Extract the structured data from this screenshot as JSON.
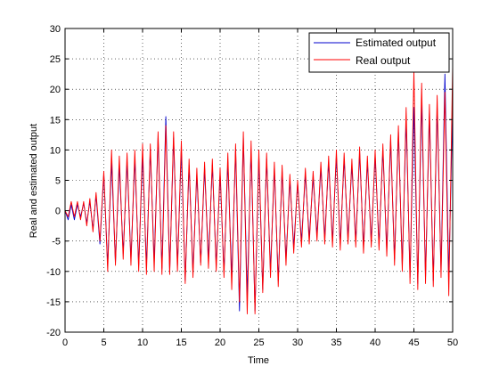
{
  "chart_data": {
    "type": "line",
    "title": "",
    "xlabel": "Time",
    "ylabel": "Real and estimated output",
    "xlim": [
      0,
      50
    ],
    "ylim": [
      -20,
      30
    ],
    "xticks": [
      0,
      5,
      10,
      15,
      20,
      25,
      30,
      35,
      40,
      45,
      50
    ],
    "yticks": [
      -20,
      -15,
      -10,
      -5,
      0,
      5,
      10,
      15,
      20,
      25,
      30
    ],
    "grid": true,
    "grid_style": "dotted",
    "legend": "top-right",
    "series": [
      {
        "name": "Estimated output",
        "color": "#0000cc",
        "peaks": [
          {
            "x": 0.0,
            "y": 0.0
          },
          {
            "x": 0.4,
            "y": -1.5
          },
          {
            "x": 0.8,
            "y": 1.0
          },
          {
            "x": 1.2,
            "y": -1.5
          },
          {
            "x": 1.6,
            "y": 1.0
          },
          {
            "x": 2.0,
            "y": -1.0
          },
          {
            "x": 2.4,
            "y": 1.2
          },
          {
            "x": 2.8,
            "y": -2.0
          },
          {
            "x": 3.2,
            "y": 1.5
          },
          {
            "x": 3.6,
            "y": -3.0
          },
          {
            "x": 4.0,
            "y": 2.5
          },
          {
            "x": 4.5,
            "y": -5.5
          },
          {
            "x": 5.0,
            "y": 6.0
          },
          {
            "x": 5.5,
            "y": -9.0
          },
          {
            "x": 6.0,
            "y": 8.0
          },
          {
            "x": 6.5,
            "y": -8.5
          },
          {
            "x": 7.0,
            "y": 7.5
          },
          {
            "x": 7.5,
            "y": -7.0
          },
          {
            "x": 8.0,
            "y": 8.0
          },
          {
            "x": 8.5,
            "y": -8.0
          },
          {
            "x": 9.0,
            "y": 8.5
          },
          {
            "x": 9.5,
            "y": -9.0
          },
          {
            "x": 10.0,
            "y": 9.0
          },
          {
            "x": 10.5,
            "y": -9.0
          },
          {
            "x": 11.0,
            "y": 10.0
          },
          {
            "x": 11.5,
            "y": -8.5
          },
          {
            "x": 12.0,
            "y": 12.0
          },
          {
            "x": 12.5,
            "y": -9.5
          },
          {
            "x": 13.0,
            "y": 15.5
          },
          {
            "x": 13.5,
            "y": -10.0
          },
          {
            "x": 14.0,
            "y": 12.0
          },
          {
            "x": 14.5,
            "y": -9.0
          },
          {
            "x": 15.0,
            "y": 10.0
          },
          {
            "x": 15.5,
            "y": -11.5
          },
          {
            "x": 16.0,
            "y": 7.5
          },
          {
            "x": 16.5,
            "y": -10.0
          },
          {
            "x": 17.0,
            "y": 6.0
          },
          {
            "x": 17.5,
            "y": -8.5
          },
          {
            "x": 18.0,
            "y": 7.0
          },
          {
            "x": 18.5,
            "y": -8.0
          },
          {
            "x": 19.0,
            "y": 7.5
          },
          {
            "x": 19.5,
            "y": -9.0
          },
          {
            "x": 20.0,
            "y": 6.0
          },
          {
            "x": 20.5,
            "y": -10.0
          },
          {
            "x": 21.0,
            "y": 8.0
          },
          {
            "x": 21.5,
            "y": -11.0
          },
          {
            "x": 22.0,
            "y": 10.0
          },
          {
            "x": 22.5,
            "y": -16.5
          },
          {
            "x": 23.0,
            "y": 12.0
          },
          {
            "x": 23.5,
            "y": -14.0
          },
          {
            "x": 24.0,
            "y": 10.0
          },
          {
            "x": 24.5,
            "y": -16.5
          },
          {
            "x": 25.0,
            "y": 9.0
          },
          {
            "x": 25.5,
            "y": -13.0
          },
          {
            "x": 26.0,
            "y": 8.5
          },
          {
            "x": 26.5,
            "y": -10.0
          },
          {
            "x": 27.0,
            "y": 7.0
          },
          {
            "x": 27.5,
            "y": -11.5
          },
          {
            "x": 28.0,
            "y": 6.5
          },
          {
            "x": 28.5,
            "y": -8.0
          },
          {
            "x": 29.0,
            "y": 5.0
          },
          {
            "x": 29.5,
            "y": -6.0
          },
          {
            "x": 30.0,
            "y": 4.5
          },
          {
            "x": 30.5,
            "y": -5.0
          },
          {
            "x": 31.0,
            "y": 6.0
          },
          {
            "x": 31.5,
            "y": -4.5
          },
          {
            "x": 32.0,
            "y": 5.5
          },
          {
            "x": 32.5,
            "y": -4.0
          },
          {
            "x": 33.0,
            "y": 7.0
          },
          {
            "x": 33.5,
            "y": -4.5
          },
          {
            "x": 34.0,
            "y": 8.0
          },
          {
            "x": 34.5,
            "y": -5.0
          },
          {
            "x": 35.0,
            "y": 9.0
          },
          {
            "x": 35.5,
            "y": -5.5
          },
          {
            "x": 36.0,
            "y": 8.5
          },
          {
            "x": 36.5,
            "y": -4.5
          },
          {
            "x": 37.0,
            "y": 7.5
          },
          {
            "x": 37.5,
            "y": -5.0
          },
          {
            "x": 38.0,
            "y": 9.5
          },
          {
            "x": 38.5,
            "y": -6.0
          },
          {
            "x": 39.0,
            "y": 8.0
          },
          {
            "x": 39.5,
            "y": -5.0
          },
          {
            "x": 40.0,
            "y": 9.0
          },
          {
            "x": 40.5,
            "y": -5.5
          },
          {
            "x": 41.0,
            "y": 10.0
          },
          {
            "x": 41.5,
            "y": -6.5
          },
          {
            "x": 42.0,
            "y": 11.5
          },
          {
            "x": 42.5,
            "y": -8.0
          },
          {
            "x": 43.0,
            "y": 13.0
          },
          {
            "x": 43.5,
            "y": -9.0
          },
          {
            "x": 44.0,
            "y": 15.0
          },
          {
            "x": 44.5,
            "y": -11.0
          },
          {
            "x": 45.0,
            "y": 17.0
          },
          {
            "x": 45.5,
            "y": -12.0
          },
          {
            "x": 46.0,
            "y": 18.0
          },
          {
            "x": 46.5,
            "y": -11.0
          },
          {
            "x": 47.0,
            "y": 16.0
          },
          {
            "x": 47.5,
            "y": -11.5
          },
          {
            "x": 48.0,
            "y": 17.0
          },
          {
            "x": 48.5,
            "y": -10.0
          },
          {
            "x": 49.0,
            "y": 22.5
          },
          {
            "x": 49.5,
            "y": -11.0
          },
          {
            "x": 50.0,
            "y": 17.5
          }
        ]
      },
      {
        "name": "Real output",
        "color": "#ff0000",
        "peaks": [
          {
            "x": 0.0,
            "y": 0.0
          },
          {
            "x": 0.4,
            "y": -1.0
          },
          {
            "x": 0.8,
            "y": 1.5
          },
          {
            "x": 1.2,
            "y": -1.0
          },
          {
            "x": 1.6,
            "y": 1.5
          },
          {
            "x": 2.0,
            "y": -1.5
          },
          {
            "x": 2.4,
            "y": 1.5
          },
          {
            "x": 2.8,
            "y": -2.5
          },
          {
            "x": 3.2,
            "y": 2.0
          },
          {
            "x": 3.6,
            "y": -3.5
          },
          {
            "x": 4.0,
            "y": 3.0
          },
          {
            "x": 4.5,
            "y": -5.0
          },
          {
            "x": 5.0,
            "y": 6.5
          },
          {
            "x": 5.5,
            "y": -10.0
          },
          {
            "x": 6.0,
            "y": 10.0
          },
          {
            "x": 6.5,
            "y": -9.0
          },
          {
            "x": 7.0,
            "y": 9.0
          },
          {
            "x": 7.5,
            "y": -8.0
          },
          {
            "x": 8.0,
            "y": 9.5
          },
          {
            "x": 8.5,
            "y": -9.0
          },
          {
            "x": 9.0,
            "y": 10.0
          },
          {
            "x": 9.5,
            "y": -10.0
          },
          {
            "x": 10.0,
            "y": 11.0
          },
          {
            "x": 10.5,
            "y": -10.5
          },
          {
            "x": 11.0,
            "y": 11.0
          },
          {
            "x": 11.5,
            "y": -10.0
          },
          {
            "x": 12.0,
            "y": 13.0
          },
          {
            "x": 12.5,
            "y": -10.5
          },
          {
            "x": 13.0,
            "y": 14.0
          },
          {
            "x": 13.5,
            "y": -10.5
          },
          {
            "x": 14.0,
            "y": 13.0
          },
          {
            "x": 14.5,
            "y": -10.0
          },
          {
            "x": 15.0,
            "y": 11.5
          },
          {
            "x": 15.5,
            "y": -12.0
          },
          {
            "x": 16.0,
            "y": 8.5
          },
          {
            "x": 16.5,
            "y": -11.0
          },
          {
            "x": 17.0,
            "y": 7.0
          },
          {
            "x": 17.5,
            "y": -9.0
          },
          {
            "x": 18.0,
            "y": 8.0
          },
          {
            "x": 18.5,
            "y": -9.5
          },
          {
            "x": 19.0,
            "y": 8.5
          },
          {
            "x": 19.5,
            "y": -10.0
          },
          {
            "x": 20.0,
            "y": 7.0
          },
          {
            "x": 20.5,
            "y": -11.0
          },
          {
            "x": 21.0,
            "y": 9.5
          },
          {
            "x": 21.5,
            "y": -13.0
          },
          {
            "x": 22.0,
            "y": 11.0
          },
          {
            "x": 22.5,
            "y": -15.0
          },
          {
            "x": 23.0,
            "y": 13.0
          },
          {
            "x": 23.5,
            "y": -17.0
          },
          {
            "x": 24.0,
            "y": 11.5
          },
          {
            "x": 24.5,
            "y": -17.0
          },
          {
            "x": 25.0,
            "y": 10.0
          },
          {
            "x": 25.5,
            "y": -13.5
          },
          {
            "x": 26.0,
            "y": 9.5
          },
          {
            "x": 26.5,
            "y": -11.0
          },
          {
            "x": 27.0,
            "y": 8.0
          },
          {
            "x": 27.5,
            "y": -12.5
          },
          {
            "x": 28.0,
            "y": 7.5
          },
          {
            "x": 28.5,
            "y": -9.0
          },
          {
            "x": 29.0,
            "y": 6.0
          },
          {
            "x": 29.5,
            "y": -7.0
          },
          {
            "x": 30.0,
            "y": 5.0
          },
          {
            "x": 30.5,
            "y": -6.0
          },
          {
            "x": 31.0,
            "y": 7.0
          },
          {
            "x": 31.5,
            "y": -5.5
          },
          {
            "x": 32.0,
            "y": 6.5
          },
          {
            "x": 32.5,
            "y": -5.0
          },
          {
            "x": 33.0,
            "y": 8.0
          },
          {
            "x": 33.5,
            "y": -5.5
          },
          {
            "x": 34.0,
            "y": 9.0
          },
          {
            "x": 34.5,
            "y": -6.0
          },
          {
            "x": 35.0,
            "y": 10.0
          },
          {
            "x": 35.5,
            "y": -6.5
          },
          {
            "x": 36.0,
            "y": 9.5
          },
          {
            "x": 36.5,
            "y": -5.5
          },
          {
            "x": 37.0,
            "y": 8.5
          },
          {
            "x": 37.5,
            "y": -6.0
          },
          {
            "x": 38.0,
            "y": 10.5
          },
          {
            "x": 38.5,
            "y": -7.0
          },
          {
            "x": 39.0,
            "y": 9.0
          },
          {
            "x": 39.5,
            "y": -6.0
          },
          {
            "x": 40.0,
            "y": 10.0
          },
          {
            "x": 40.5,
            "y": -6.5
          },
          {
            "x": 41.0,
            "y": 11.0
          },
          {
            "x": 41.5,
            "y": -7.5
          },
          {
            "x": 42.0,
            "y": 12.5
          },
          {
            "x": 42.5,
            "y": -9.0
          },
          {
            "x": 43.0,
            "y": 14.0
          },
          {
            "x": 43.5,
            "y": -10.0
          },
          {
            "x": 44.0,
            "y": 17.0
          },
          {
            "x": 44.5,
            "y": -12.0
          },
          {
            "x": 45.0,
            "y": 23.0
          },
          {
            "x": 45.5,
            "y": -13.0
          },
          {
            "x": 46.0,
            "y": 21.0
          },
          {
            "x": 46.5,
            "y": -12.0
          },
          {
            "x": 47.0,
            "y": 17.5
          },
          {
            "x": 47.5,
            "y": -12.5
          },
          {
            "x": 48.0,
            "y": 19.0
          },
          {
            "x": 48.5,
            "y": -11.0
          },
          {
            "x": 49.0,
            "y": 19.5
          },
          {
            "x": 49.5,
            "y": -14.0
          },
          {
            "x": 50.0,
            "y": 24.0
          }
        ]
      }
    ]
  }
}
